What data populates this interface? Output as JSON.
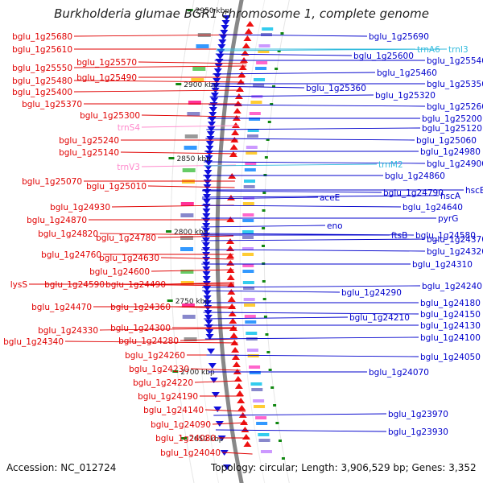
{
  "title": "Burkholderia glumae BGR1 chromosome 1, complete genome",
  "footer": {
    "accession": "Accession: NC_012724",
    "topology": "Topology: circular; Length: 3,906,529 bp; Genes: 3,352"
  },
  "colors": {
    "left_labels": "#e00000",
    "right_labels": "#0000cc",
    "rna_pink": "#ff88cc",
    "rna_cyan": "#33bbdd",
    "backbone": "#888888",
    "tick": "#118811"
  },
  "ticks": [
    {
      "label": "2900 kbp"
    },
    {
      "label": "2850 kbp"
    },
    {
      "label": "2800 kbp"
    },
    {
      "label": "2750 kbp"
    },
    {
      "label": "2700 kbp"
    },
    {
      "label": "2650 kbp"
    },
    {
      "label": "2950 kbp"
    }
  ],
  "left_labels": [
    {
      "text": "bglu_1g25680",
      "type": "gene"
    },
    {
      "text": "bglu_1g25610",
      "type": "gene"
    },
    {
      "text": "bglu_1g25570",
      "type": "gene"
    },
    {
      "text": "bglu_1g25550",
      "type": "gene"
    },
    {
      "text": "bglu_1g25490",
      "type": "gene"
    },
    {
      "text": "bglu_1g25480",
      "type": "gene"
    },
    {
      "text": "bglu_1g25400",
      "type": "gene"
    },
    {
      "text": "bglu_1g25370",
      "type": "gene"
    },
    {
      "text": "bglu_1g25300",
      "type": "gene"
    },
    {
      "text": "trnS4",
      "type": "rna"
    },
    {
      "text": "bglu_1g25240",
      "type": "gene"
    },
    {
      "text": "bglu_1g25140",
      "type": "gene"
    },
    {
      "text": "trnV3",
      "type": "rna"
    },
    {
      "text": "bglu_1g25070",
      "type": "gene"
    },
    {
      "text": "bglu_1g25010",
      "type": "gene"
    },
    {
      "text": "bglu_1g24930",
      "type": "gene"
    },
    {
      "text": "bglu_1g24870",
      "type": "gene"
    },
    {
      "text": "bglu_1g24820",
      "type": "gene"
    },
    {
      "text": "bglu_1g24780",
      "type": "gene"
    },
    {
      "text": "bglu_1g24760",
      "type": "gene"
    },
    {
      "text": "bglu_1g24630",
      "type": "gene"
    },
    {
      "text": "bglu_1g24600",
      "type": "gene"
    },
    {
      "text": "lysS",
      "type": "gene"
    },
    {
      "text": "bglu_1g24590",
      "type": "gene"
    },
    {
      "text": "bglu_1g24490",
      "type": "gene"
    },
    {
      "text": "bglu_1g24470",
      "type": "gene"
    },
    {
      "text": "bglu_1g24360",
      "type": "gene"
    },
    {
      "text": "bglu_1g24330",
      "type": "gene"
    },
    {
      "text": "bglu_1g24300",
      "type": "gene"
    },
    {
      "text": "bglu_1g24340",
      "type": "gene"
    },
    {
      "text": "bglu_1g24280",
      "type": "gene"
    },
    {
      "text": "bglu_1g24260",
      "type": "gene"
    },
    {
      "text": "bglu_1g24230",
      "type": "gene"
    },
    {
      "text": "bglu_1g24220",
      "type": "gene"
    },
    {
      "text": "bglu_1g24190",
      "type": "gene"
    },
    {
      "text": "bglu_1g24140",
      "type": "gene"
    },
    {
      "text": "bglu_1g24090",
      "type": "gene"
    },
    {
      "text": "bglu_1g24080",
      "type": "gene"
    },
    {
      "text": "bglu_1g24040",
      "type": "gene"
    }
  ],
  "right_labels": [
    {
      "text": "bglu_1g25690",
      "type": "gene"
    },
    {
      "text": "trnA6",
      "type": "rna"
    },
    {
      "text": "trnI3",
      "type": "rna"
    },
    {
      "text": "bglu_1g25600",
      "type": "gene"
    },
    {
      "text": "bglu_1g25540",
      "type": "gene"
    },
    {
      "text": "bglu_1g25460",
      "type": "gene"
    },
    {
      "text": "bglu_1g25360",
      "type": "gene"
    },
    {
      "text": "bglu_1g25350",
      "type": "gene"
    },
    {
      "text": "bglu_1g25320",
      "type": "gene"
    },
    {
      "text": "bglu_1g25260",
      "type": "gene"
    },
    {
      "text": "bglu_1g25200",
      "type": "gene"
    },
    {
      "text": "bglu_1g25120",
      "type": "gene"
    },
    {
      "text": "bglu_1g25060",
      "type": "gene"
    },
    {
      "text": "bglu_1g24980",
      "type": "gene"
    },
    {
      "text": "trnM2",
      "type": "rna"
    },
    {
      "text": "bglu_1g24900",
      "type": "gene"
    },
    {
      "text": "bglu_1g24860",
      "type": "gene"
    },
    {
      "text": "aceE",
      "type": "gene"
    },
    {
      "text": "bglu_1g24790",
      "type": "gene"
    },
    {
      "text": "hscB",
      "type": "gene"
    },
    {
      "text": "hscA",
      "type": "gene"
    },
    {
      "text": "bglu_1g24640",
      "type": "gene"
    },
    {
      "text": "pyrG",
      "type": "gene"
    },
    {
      "text": "eno",
      "type": "gene"
    },
    {
      "text": "bglu_1g24580",
      "type": "gene"
    },
    {
      "text": "ftsB",
      "type": "gene"
    },
    {
      "text": "bglu_1g24370",
      "type": "gene"
    },
    {
      "text": "bglu_1g24320",
      "type": "gene"
    },
    {
      "text": "bglu_1g24310",
      "type": "gene"
    },
    {
      "text": "bglu_1g24240",
      "type": "gene"
    },
    {
      "text": "bglu_1g24290",
      "type": "gene"
    },
    {
      "text": "bglu_1g24180",
      "type": "gene"
    },
    {
      "text": "bglu_1g24210",
      "type": "gene"
    },
    {
      "text": "bglu_1g24150",
      "type": "gene"
    },
    {
      "text": "bglu_1g24130",
      "type": "gene"
    },
    {
      "text": "bglu_1g24100",
      "type": "gene"
    },
    {
      "text": "bglu_1g24050",
      "type": "gene"
    },
    {
      "text": "bglu_1g24070",
      "type": "gene"
    },
    {
      "text": "bglu_1g23970",
      "type": "gene"
    },
    {
      "text": "bglu_1g23930",
      "type": "gene"
    }
  ]
}
